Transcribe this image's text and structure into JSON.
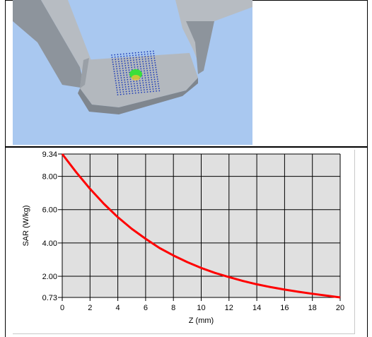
{
  "chart_data": {
    "type": "line",
    "xlabel": "Z",
    "xunit": "(mm)",
    "ylabel": "SAR",
    "yunit": "(W/kg)",
    "xlim": [
      0,
      20
    ],
    "ylim": [
      0.73,
      9.34
    ],
    "xticks": [
      "0",
      "2",
      "4",
      "6",
      "8",
      "10",
      "12",
      "14",
      "16",
      "18",
      "20"
    ],
    "yticks": [
      "0.73",
      "2.00",
      "4.00",
      "6.00",
      "8.00",
      "9.34"
    ],
    "grid": true,
    "series": [
      {
        "color": "#ff0000",
        "x": [
          0,
          1,
          2,
          3,
          4,
          5,
          6,
          7,
          8,
          9,
          10,
          11,
          12,
          13,
          14,
          15,
          16,
          17,
          18,
          19,
          20
        ],
        "y": [
          9.34,
          8.25,
          7.25,
          6.35,
          5.55,
          4.85,
          4.25,
          3.7,
          3.25,
          2.85,
          2.5,
          2.2,
          1.95,
          1.72,
          1.52,
          1.35,
          1.2,
          1.07,
          0.95,
          0.84,
          0.73
        ]
      }
    ]
  },
  "view3d": {
    "description_icon": "phantom-scan-3d-render",
    "background_color": "#a9c8f0",
    "hotspot_color": "#3adf3a",
    "grid_color": "#1e3db8"
  }
}
